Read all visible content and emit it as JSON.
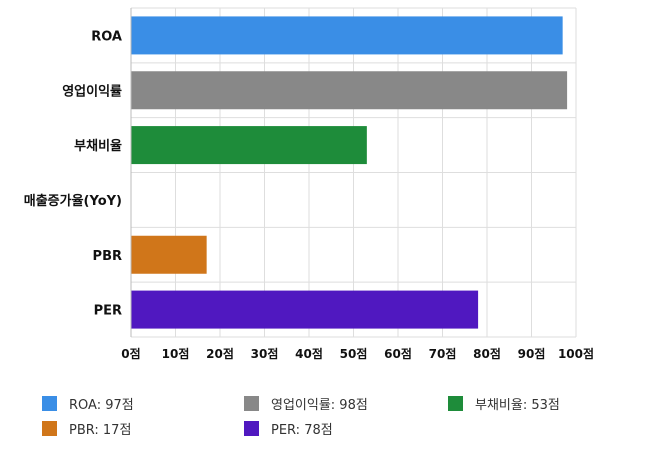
{
  "chart_data": {
    "type": "bar",
    "orientation": "horizontal",
    "categories": [
      "ROA",
      "영업이익률",
      "부채비율",
      "매출증가율(YoY)",
      "PBR",
      "PER"
    ],
    "values": [
      97,
      98,
      53,
      0,
      17,
      78
    ],
    "colors": [
      "#3a8ee6",
      "#888888",
      "#1e8c3a",
      "#d0761a",
      "#d0761a",
      "#5018c0"
    ],
    "xlim": [
      0,
      100
    ],
    "xticks": [
      "0점",
      "10점",
      "20점",
      "30점",
      "40점",
      "50점",
      "60점",
      "70점",
      "80점",
      "90점",
      "100점"
    ],
    "grid": true,
    "legend_position": "bottom",
    "legend": [
      {
        "label": "ROA: 97점",
        "color": "#3a8ee6"
      },
      {
        "label": "영업이익률: 98점",
        "color": "#888888"
      },
      {
        "label": "부채비율: 53점",
        "color": "#1e8c3a"
      },
      {
        "label": "PBR: 17점",
        "color": "#d0761a"
      },
      {
        "label": "PER: 78점",
        "color": "#5018c0"
      }
    ]
  }
}
